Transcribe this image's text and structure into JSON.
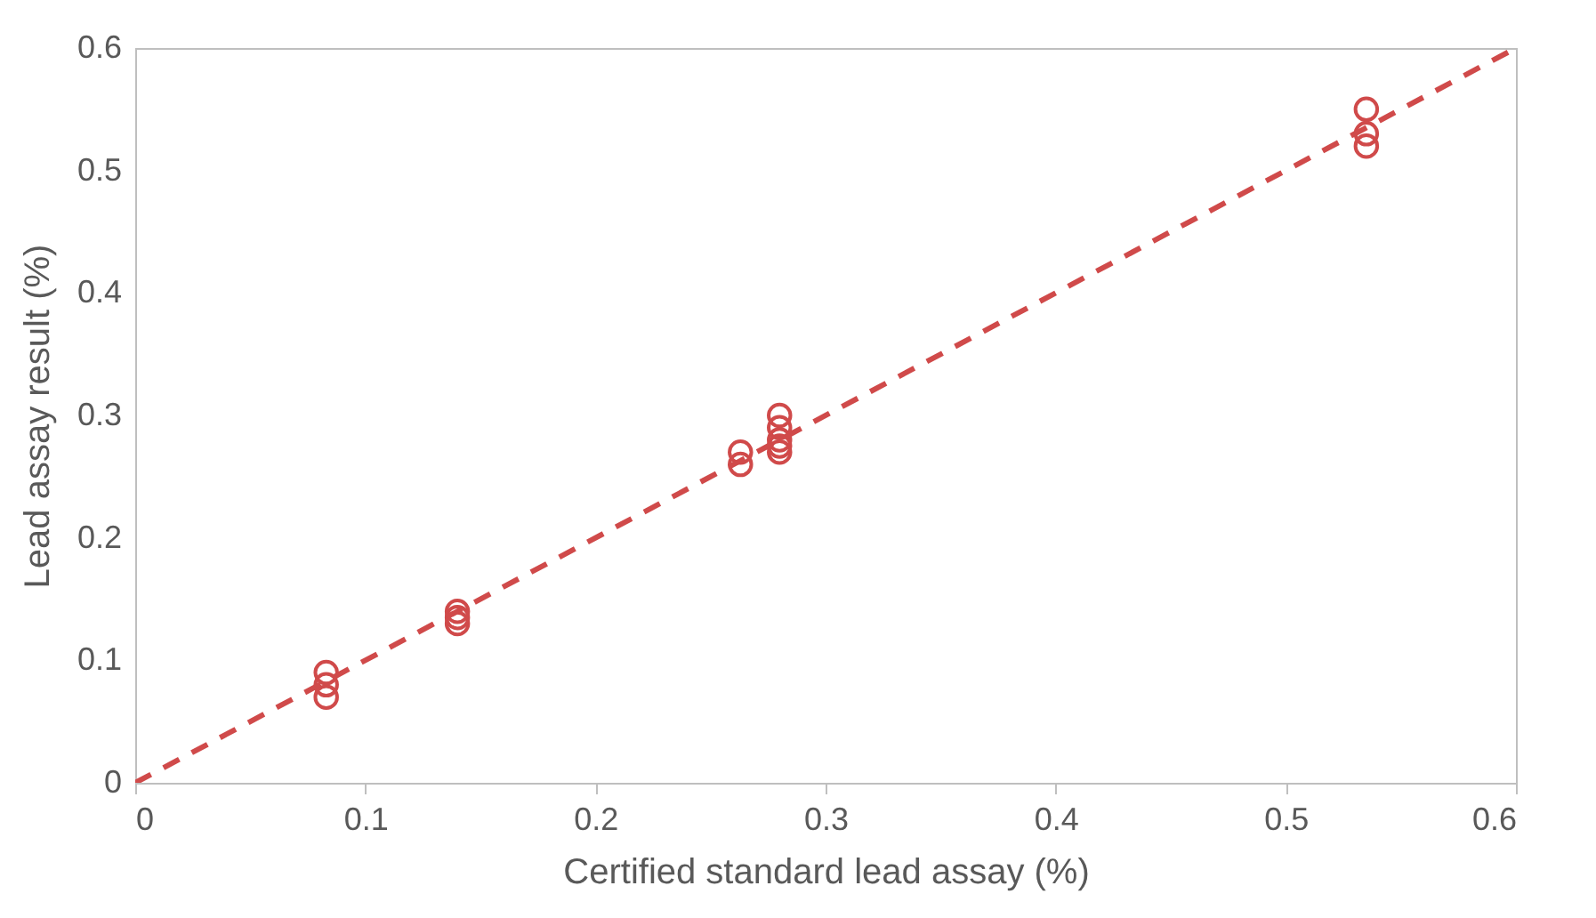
{
  "chart_data": {
    "type": "scatter",
    "xlabel": "Certified standard lead assay (%)",
    "ylabel": "Lead assay result (%)",
    "xlim": [
      0,
      0.6
    ],
    "ylim": [
      0,
      0.6
    ],
    "xticks": [
      0,
      0.1,
      0.2,
      0.3,
      0.4,
      0.5,
      0.6
    ],
    "yticks": [
      0,
      0.1,
      0.2,
      0.3,
      0.4,
      0.5,
      0.6
    ],
    "grid": false,
    "series": [
      {
        "marker": "circle",
        "color": "#d04a4a",
        "x": [
          0.083,
          0.083,
          0.083,
          0.14,
          0.14,
          0.14,
          0.263,
          0.263,
          0.28,
          0.28,
          0.28,
          0.28,
          0.28,
          0.535,
          0.535,
          0.535
        ],
        "values": [
          0.07,
          0.08,
          0.09,
          0.13,
          0.135,
          0.14,
          0.26,
          0.27,
          0.27,
          0.275,
          0.28,
          0.29,
          0.3,
          0.52,
          0.53,
          0.55
        ]
      },
      {
        "type": "line",
        "color": "#d04a4a",
        "line_style": "dashed",
        "x": [
          0,
          0.6
        ],
        "values": [
          0,
          0.6
        ]
      }
    ]
  }
}
